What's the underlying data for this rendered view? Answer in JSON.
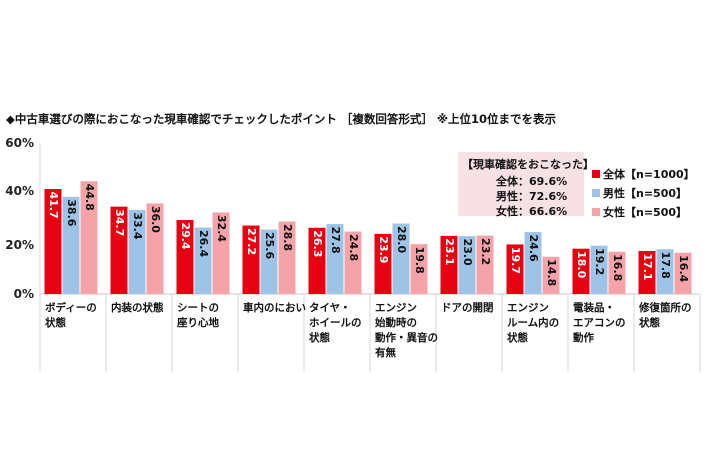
{
  "chart_data": {
    "type": "bar",
    "title": "◆中古車選びの際におこなった現車確認でチェックしたポイント ［複数回答形式］ ※上位10位までを表示",
    "y_ticks": [
      "60%",
      "40%",
      "20%",
      "0%"
    ],
    "ylim": [
      0,
      60
    ],
    "categories": [
      [
        "ボディーの",
        "状態"
      ],
      [
        "内装の状態"
      ],
      [
        "シートの",
        "座り心地"
      ],
      [
        "車内のにおい"
      ],
      [
        "タイヤ・",
        "ホイールの",
        "状態"
      ],
      [
        "エンジン",
        "始動時の",
        "動作・異音の",
        "有無"
      ],
      [
        "ドアの開閉"
      ],
      [
        "エンジン",
        "ルーム内の",
        "状態"
      ],
      [
        "電装品・",
        "エアコンの",
        "動作"
      ],
      [
        "修復箇所の",
        "状態"
      ]
    ],
    "series": [
      {
        "name": "全体【n=1000】",
        "color": "#e60012",
        "values": [
          41.7,
          34.7,
          29.4,
          27.2,
          26.3,
          23.9,
          23.1,
          19.7,
          18.0,
          17.1
        ],
        "labels": [
          "41.7",
          "34.7",
          "29.4",
          "27.2",
          "26.3",
          "23.9",
          "23.1",
          "19.7",
          "18.0",
          "17.1"
        ]
      },
      {
        "name": "男性【n=500】",
        "color": "#9dc3e6",
        "values": [
          38.6,
          33.4,
          26.4,
          25.6,
          27.8,
          28.0,
          23.0,
          24.6,
          19.2,
          17.8
        ],
        "labels": [
          "38.6",
          "33.4",
          "26.4",
          "25.6",
          "27.8",
          "28.0",
          "23.0",
          "24.6",
          "19.2",
          "17.8"
        ]
      },
      {
        "name": "女性【n=500】",
        "color": "#f4a3a8",
        "values": [
          44.8,
          36.0,
          32.4,
          28.8,
          24.8,
          19.8,
          23.2,
          14.8,
          16.8,
          16.4
        ],
        "labels": [
          "44.8",
          "36.0",
          "32.4",
          "28.8",
          "24.8",
          "19.8",
          "23.2",
          "14.8",
          "16.8",
          "16.4"
        ]
      }
    ],
    "grid": false,
    "legend_position": "right"
  },
  "summary": {
    "title": "【現車確認をおこなった】",
    "lines": [
      "全体：69.6%",
      "男性：72.6%",
      "女性：66.6%"
    ],
    "background": "#f7e1e5"
  }
}
